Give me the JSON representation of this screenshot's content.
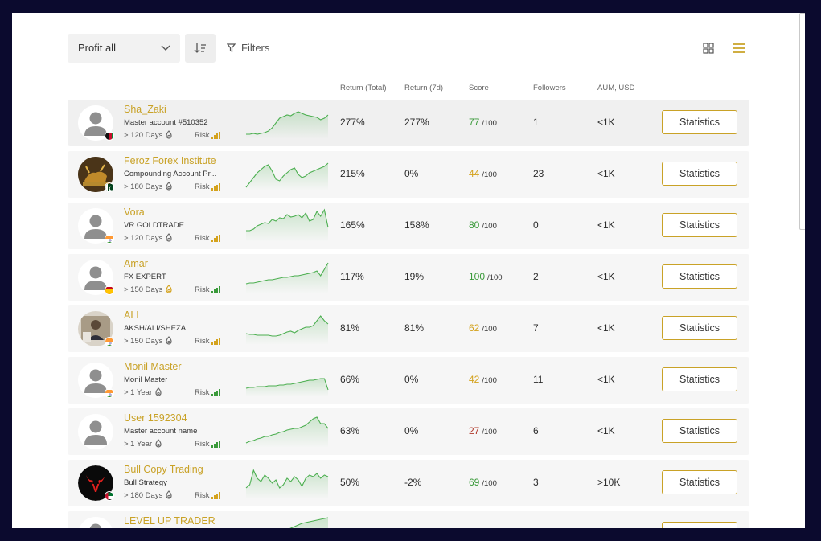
{
  "toolbar": {
    "sort_select": "Profit all",
    "filters_label": "Filters"
  },
  "columns": {
    "return_total": "Return (Total)",
    "return_7d": "Return (7d)",
    "score": "Score",
    "followers": "Followers",
    "aum": "AUM, USD"
  },
  "colors": {
    "accent": "#c9a227",
    "score_green": "#3a9a3a",
    "score_yellow": "#d4a21c",
    "score_red": "#b0392b",
    "chart_line": "#4caf50"
  },
  "rows": [
    {
      "name": "Sha_Zaki",
      "account": "Master account #510352",
      "days": "> 120 Days",
      "risk": "Risk",
      "return_total": "277%",
      "return_7d": "277%",
      "score": "77",
      "score_max": "/100",
      "followers": "1",
      "aum": "<1K",
      "button": "Statistics",
      "flag": "afghanistan",
      "avatar": "default-avatar"
    },
    {
      "name": "Feroz Forex Institute",
      "account": "Compounding Account Pr...",
      "days": "> 180 Days",
      "risk": "Risk",
      "return_total": "215%",
      "return_7d": "0%",
      "score": "44",
      "score_max": "/100",
      "followers": "23",
      "aum": "<1K",
      "button": "Statistics",
      "flag": "pakistan",
      "avatar": "bull-photo"
    },
    {
      "name": "Vora",
      "account": "VR GOLDTRADE",
      "days": "> 120 Days",
      "risk": "Risk",
      "return_total": "165%",
      "return_7d": "158%",
      "score": "80",
      "score_max": "/100",
      "followers": "0",
      "aum": "<1K",
      "button": "Statistics",
      "flag": "india",
      "avatar": "default-avatar"
    },
    {
      "name": "Amar",
      "account": "FX EXPERT",
      "days": "> 150 Days",
      "risk": "Risk",
      "return_total": "117%",
      "return_7d": "19%",
      "score": "100",
      "score_max": "/100",
      "followers": "2",
      "aum": "<1K",
      "button": "Statistics",
      "flag": "spain",
      "avatar": "default-avatar"
    },
    {
      "name": "ALI",
      "account": "AKSH/ALI/SHEZA",
      "days": "> 150 Days",
      "risk": "Risk",
      "return_total": "81%",
      "return_7d": "81%",
      "score": "62",
      "score_max": "/100",
      "followers": "7",
      "aum": "<1K",
      "button": "Statistics",
      "flag": "india",
      "avatar": "person-photo"
    },
    {
      "name": "Monil Master",
      "account": "Monil Master",
      "days": "> 1 Year",
      "risk": "Risk",
      "return_total": "66%",
      "return_7d": "0%",
      "score": "42",
      "score_max": "/100",
      "followers": "11",
      "aum": "<1K",
      "button": "Statistics",
      "flag": "india",
      "avatar": "default-avatar"
    },
    {
      "name": "User 1592304",
      "account": "Master account name",
      "days": "> 1 Year",
      "risk": "Risk",
      "return_total": "63%",
      "return_7d": "0%",
      "score": "27",
      "score_max": "/100",
      "followers": "6",
      "aum": "<1K",
      "button": "Statistics",
      "flag": "",
      "avatar": "default-avatar"
    },
    {
      "name": "Bull Copy Trading",
      "account": "Bull Strategy",
      "days": "> 180 Days",
      "risk": "Risk",
      "return_total": "50%",
      "return_7d": "-2%",
      "score": "69",
      "score_max": "/100",
      "followers": "3",
      "aum": ">10K",
      "button": "Statistics",
      "flag": "uae",
      "avatar": "bull-logo"
    },
    {
      "name": "LEVEL UP TRADER",
      "account": "",
      "days": "",
      "risk": "",
      "return_total": "",
      "return_7d": "",
      "score": "",
      "score_max": "",
      "followers": "",
      "aum": "",
      "button": "",
      "flag": "",
      "avatar": "default-avatar"
    }
  ]
}
